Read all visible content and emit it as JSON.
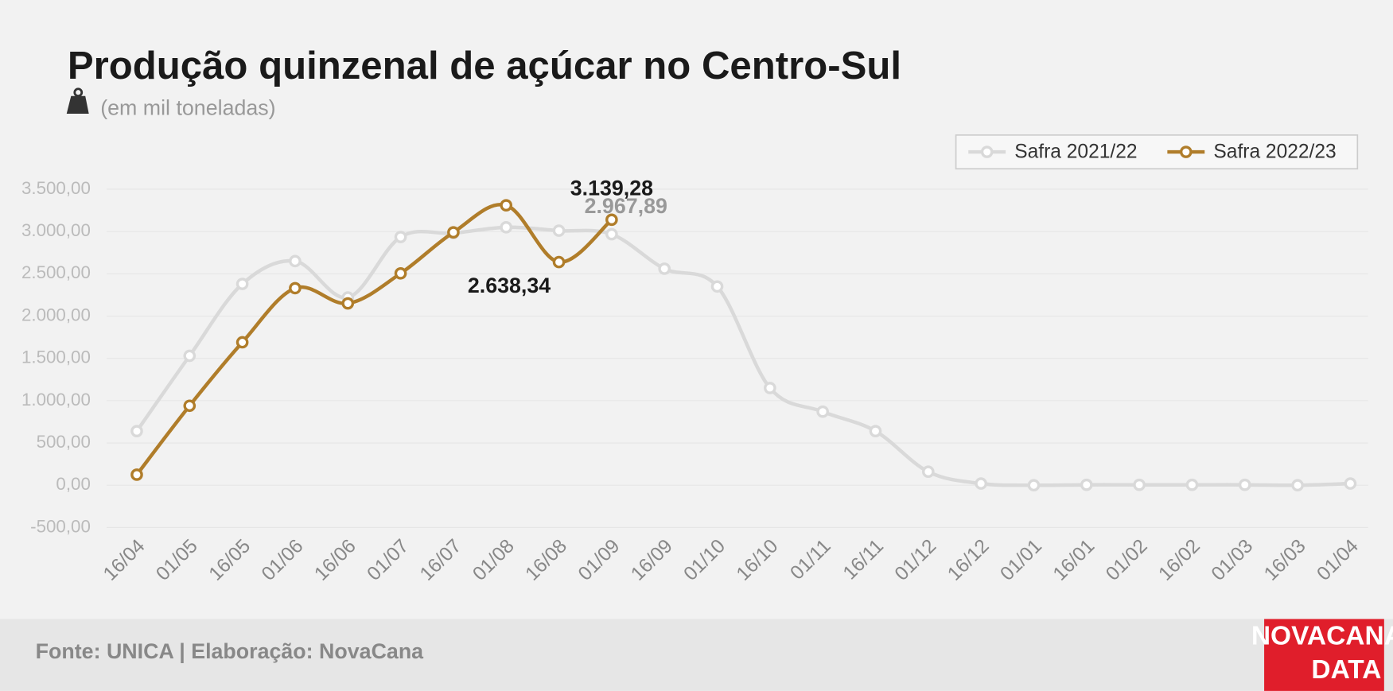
{
  "chart_data": {
    "type": "line",
    "title": "Produção quinzenal de açúcar no Centro-Sul",
    "subtitle": "(em mil toneladas)",
    "source": "Fonte: UNICA | Elaboração: NovaCana",
    "logo": [
      "NOVACANA",
      "DATA"
    ],
    "categories": [
      "16/04",
      "01/05",
      "16/05",
      "01/06",
      "16/06",
      "01/07",
      "16/07",
      "01/08",
      "16/08",
      "01/09",
      "16/09",
      "01/10",
      "16/10",
      "01/11",
      "16/11",
      "01/12",
      "16/12",
      "01/01",
      "16/01",
      "01/02",
      "16/02",
      "01/03",
      "16/03",
      "01/04"
    ],
    "series": [
      {
        "name": "Safra 2021/22",
        "color": "#d9d9d9",
        "values": [
          640,
          1530,
          2380,
          2650,
          2220,
          2935,
          2980,
          3050,
          3010,
          2967.89,
          2560,
          2350,
          1150,
          870,
          640,
          160,
          20,
          0,
          5,
          5,
          5,
          5,
          0,
          20
        ],
        "value_labels": [
          null,
          null,
          null,
          null,
          null,
          null,
          null,
          null,
          null,
          "2.967,89",
          null,
          null,
          null,
          null,
          null,
          null,
          null,
          null,
          null,
          null,
          null,
          null,
          null,
          null
        ]
      },
      {
        "name": "Safra 2022/23",
        "color": "#b07d2a",
        "values": [
          125,
          940,
          1690,
          2330,
          2150,
          2505,
          2990,
          3310,
          2638.34,
          3139.28,
          null,
          null,
          null,
          null,
          null,
          null,
          null,
          null,
          null,
          null,
          null,
          null,
          null,
          null
        ],
        "value_labels": [
          null,
          null,
          null,
          null,
          null,
          null,
          null,
          null,
          "2.638,34",
          "3.139,28",
          null,
          null,
          null,
          null,
          null,
          null,
          null,
          null,
          null,
          null,
          null,
          null,
          null,
          null
        ]
      }
    ],
    "ylim": [
      -500,
      3500
    ],
    "yticks": [
      {
        "value": -500,
        "label": "-500,00"
      },
      {
        "value": 0,
        "label": "0,00"
      },
      {
        "value": 500,
        "label": "500,00"
      },
      {
        "value": 1000,
        "label": "1.000,00"
      },
      {
        "value": 1500,
        "label": "1.500,00"
      },
      {
        "value": 2000,
        "label": "2.000,00"
      },
      {
        "value": 2500,
        "label": "2.500,00"
      },
      {
        "value": 3000,
        "label": "3.000,00"
      },
      {
        "value": 3500,
        "label": "3.500,00"
      }
    ],
    "grid": true,
    "legend": "top-right"
  }
}
